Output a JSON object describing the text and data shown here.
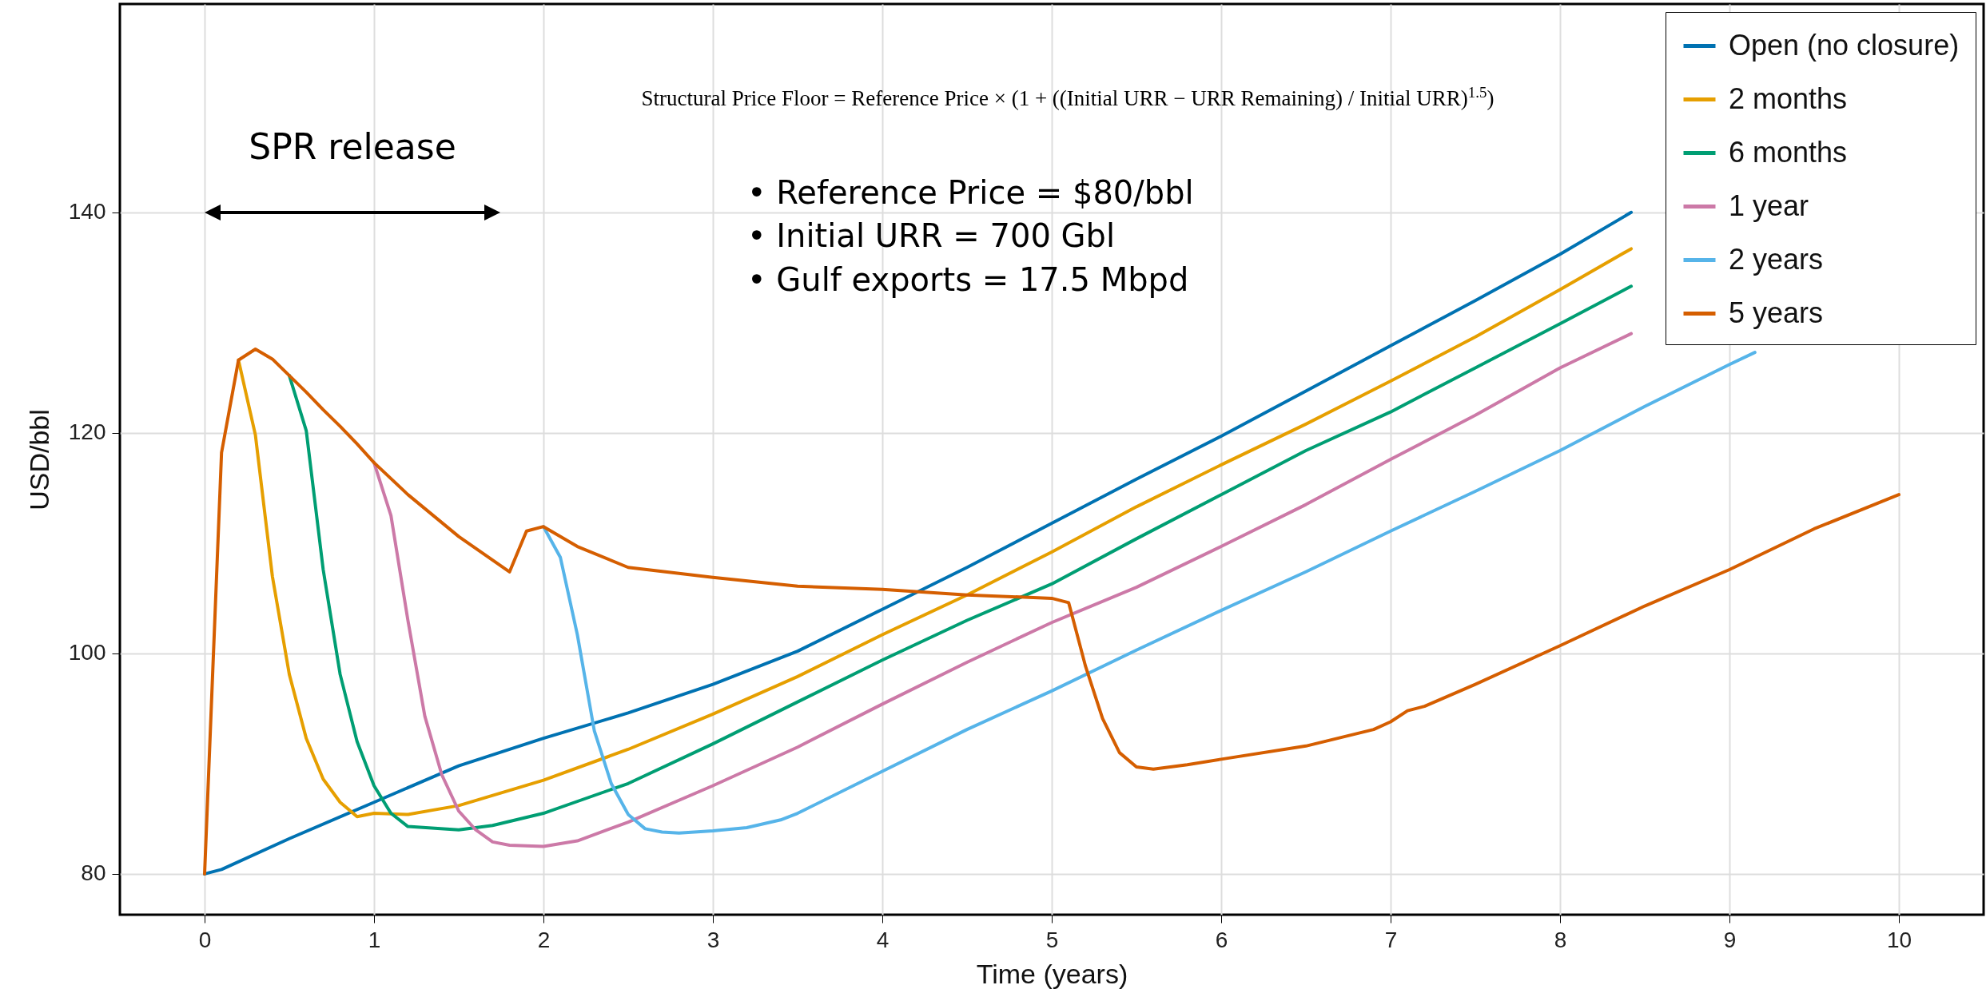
{
  "chart_data": {
    "type": "line",
    "xlabel": "Time (years)",
    "ylabel": "USD/bbl",
    "xlim": [
      -0.5,
      10.5
    ],
    "xticks": [
      0,
      1,
      2,
      3,
      4,
      5,
      6,
      7,
      8,
      9,
      10
    ],
    "ylim": [
      76.3,
      158.9
    ],
    "yticks": [
      80,
      100,
      120,
      140
    ],
    "grid": true,
    "legend": "top right",
    "line_style": "solid",
    "annotations": [
      "SPR release",
      "Structural Price Floor = Reference Price × (1 + ((Initial URR − URR Remaining) / Initial URR)$^{1.5}$)",
      "• Reference Price = $80/bbl",
      "• Initial URR = 700 Gbl",
      "• Gulf exports = 17.5 Mbpd"
    ],
    "series": [
      {
        "name": "Open (no closure)",
        "color": "#0072b2",
        "x": [
          0,
          0.1,
          0.5,
          1,
          1.5,
          2,
          2.5,
          3,
          3.5,
          4,
          4.5,
          5,
          5.5,
          6,
          6.5,
          7,
          7.5,
          8,
          8.42
        ],
        "values": [
          80,
          80.4,
          83.2,
          86.5,
          89.8,
          92.3,
          94.6,
          97.2,
          100.2,
          104,
          107.8,
          111.8,
          115.8,
          119.7,
          123.8,
          127.9,
          132,
          136.2,
          140
        ]
      },
      {
        "name": "2 months",
        "color": "#e69f00",
        "x": [
          0.2,
          0.3,
          0.4,
          0.5,
          0.6,
          0.7,
          0.8,
          0.9,
          1,
          1.2,
          1.5,
          2,
          2.5,
          3,
          3.5,
          4,
          4.5,
          5,
          5.5,
          6,
          6.5,
          7,
          7.5,
          8,
          8.42
        ],
        "values": [
          126.6,
          119.8,
          107,
          98.1,
          92.3,
          88.6,
          86.5,
          85.2,
          85.5,
          85.4,
          86.2,
          88.5,
          91.3,
          94.5,
          97.9,
          101.7,
          105.3,
          109.2,
          113.3,
          117.1,
          120.8,
          124.7,
          128.7,
          133,
          136.7
        ]
      },
      {
        "name": "6 months",
        "color": "#009e73",
        "x": [
          0.5,
          0.6,
          0.7,
          0.8,
          0.9,
          1,
          1.1,
          1.2,
          1.5,
          1.7,
          2,
          2.5,
          3,
          3.5,
          4,
          4.5,
          5,
          5.5,
          6,
          6.5,
          7,
          7.5,
          8,
          8.42
        ],
        "values": [
          125.2,
          120.2,
          107.6,
          98.1,
          92,
          88,
          85.5,
          84.3,
          84,
          84.4,
          85.5,
          88.2,
          91.8,
          95.6,
          99.4,
          103,
          106.3,
          110.4,
          114.4,
          118.4,
          121.9,
          125.9,
          129.9,
          133.3
        ]
      },
      {
        "name": "1 year",
        "color": "#cc79a7",
        "x": [
          1,
          1.1,
          1.2,
          1.3,
          1.4,
          1.5,
          1.6,
          1.7,
          1.8,
          2,
          2.2,
          2.5,
          3,
          3.5,
          4,
          4.5,
          5,
          5.5,
          6,
          6.5,
          7,
          7.5,
          8,
          8.42
        ],
        "values": [
          117.3,
          112.5,
          103,
          94.3,
          89,
          85.7,
          84,
          82.9,
          82.6,
          82.5,
          83,
          84.7,
          88,
          91.5,
          95.4,
          99.2,
          102.8,
          106,
          109.7,
          113.5,
          117.6,
          121.6,
          125.9,
          129
        ]
      },
      {
        "name": "2 years",
        "color": "#56b4e9",
        "x": [
          2,
          2.1,
          2.2,
          2.3,
          2.4,
          2.5,
          2.6,
          2.7,
          2.8,
          3,
          3.2,
          3.4,
          3.5,
          4,
          4.5,
          5,
          5.5,
          6,
          6.5,
          7,
          7.5,
          8,
          8.5,
          9,
          9.15
        ],
        "values": [
          111.5,
          108.7,
          101.7,
          93,
          88.2,
          85.4,
          84.1,
          83.8,
          83.7,
          83.9,
          84.2,
          84.9,
          85.5,
          89.3,
          93.1,
          96.6,
          100.3,
          103.9,
          107.4,
          111.1,
          114.7,
          118.4,
          122.4,
          126.2,
          127.3
        ]
      },
      {
        "name": "5 years",
        "color": "#d55e00",
        "x": [
          0,
          0.1,
          0.2,
          0.3,
          0.4,
          0.5,
          0.6,
          0.7,
          0.8,
          0.9,
          1,
          1.2,
          1.5,
          1.8,
          1.9,
          2,
          2.2,
          2.5,
          3,
          3.5,
          4,
          4.5,
          5,
          5.1,
          5.2,
          5.3,
          5.4,
          5.5,
          5.6,
          5.8,
          6,
          6.5,
          6.9,
          7,
          7.1,
          7.2,
          7.5,
          8,
          8.5,
          9,
          9.5,
          10
        ],
        "values": [
          80,
          118.2,
          126.6,
          127.6,
          126.7,
          125.2,
          123.7,
          122.1,
          120.6,
          119,
          117.3,
          114.4,
          110.6,
          107.4,
          111.1,
          111.5,
          109.7,
          107.8,
          106.9,
          106.1,
          105.8,
          105.3,
          105,
          104.6,
          98.8,
          94.1,
          91,
          89.7,
          89.5,
          89.9,
          90.4,
          91.6,
          93.1,
          93.8,
          94.8,
          95.2,
          97.2,
          100.7,
          104.3,
          107.6,
          111.3,
          114.4
        ]
      }
    ]
  }
}
